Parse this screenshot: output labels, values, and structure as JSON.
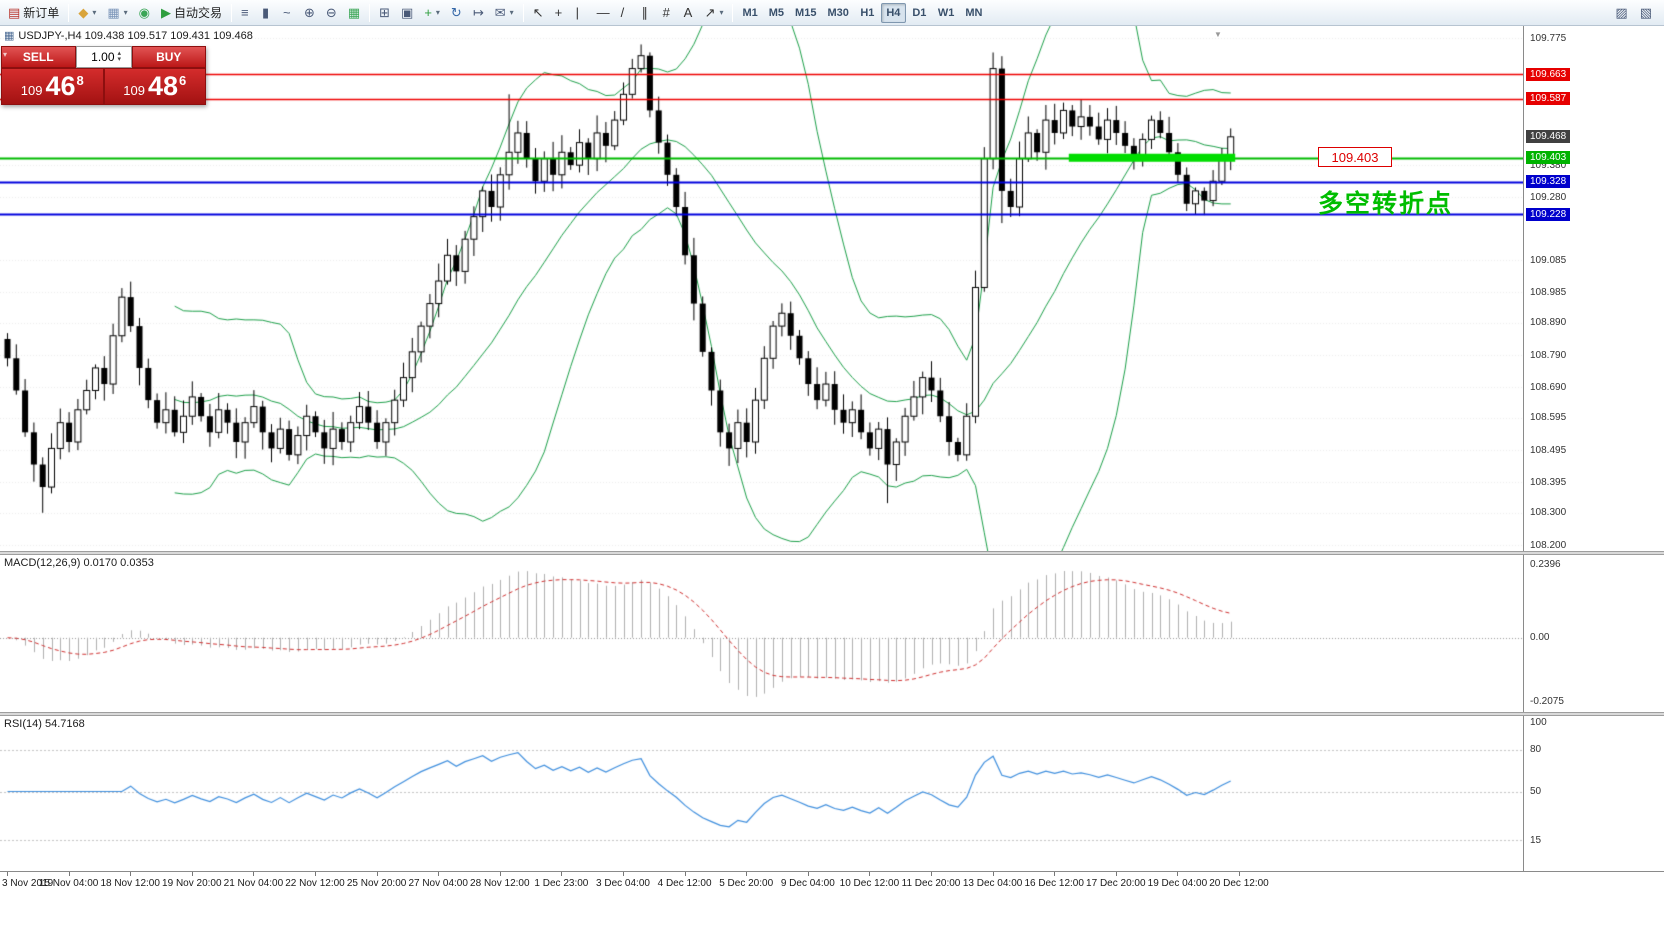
{
  "icons": {
    "caret": "▾",
    "volume_up": "▴",
    "volume_down": "▾",
    "collapse": "▾",
    "symbol_chart": "▦",
    "chart_shift_marker": "▼"
  },
  "toolbar": {
    "groups": [
      [
        {
          "name": "new-order-button",
          "glyph": "▤",
          "glyph_color": "#b8342c",
          "label": "新订单"
        }
      ],
      [
        {
          "name": "new-chart-icon",
          "glyph": "◆",
          "glyph_color": "#d9a43b",
          "caret": true
        },
        {
          "name": "profiles-icon",
          "glyph": "▦",
          "glyph_color": "#7a94b8",
          "caret": true
        },
        {
          "name": "data-window-icon",
          "glyph": "◉",
          "glyph_color": "#3aa655"
        },
        {
          "name": "auto-trading-button",
          "glyph": "▶",
          "glyph_color": "#2e9e3f",
          "label": "自动交易"
        }
      ],
      [
        {
          "name": "bar-chart-icon",
          "glyph": "≡",
          "glyph_color": "#4a5a78"
        },
        {
          "name": "candlestick-chart-icon",
          "glyph": "▮",
          "glyph_color": "#4a5a78"
        },
        {
          "name": "line-chart-icon",
          "glyph": "~",
          "glyph_color": "#4a5a78"
        },
        {
          "name": "zoom-in-icon",
          "glyph": "⊕",
          "glyph_color": "#4a5a78"
        },
        {
          "name": "zoom-out-icon",
          "glyph": "⊖",
          "glyph_color": "#4a5a78"
        },
        {
          "name": "grid-icon",
          "glyph": "▦",
          "glyph_color": "#3aa655"
        }
      ],
      [
        {
          "name": "tile-windows-icon",
          "glyph": "⊞",
          "glyph_color": "#4a5a78"
        },
        {
          "name": "arrange-windows-icon",
          "glyph": "▣",
          "glyph_color": "#4a5a78"
        },
        {
          "name": "add-chart-icon",
          "glyph": "+",
          "glyph_color": "#2e9e3f",
          "caret": true
        },
        {
          "name": "auto-scroll-icon",
          "glyph": "↻",
          "glyph_color": "#3668a8"
        },
        {
          "name": "chart-shift-icon",
          "glyph": "↦",
          "glyph_color": "#4a5a78"
        },
        {
          "name": "alerts-icon",
          "glyph": "✉",
          "glyph_color": "#4a5a78",
          "caret": true
        }
      ],
      [
        {
          "name": "cursor-icon",
          "glyph": "↖",
          "glyph_color": "#333333"
        },
        {
          "name": "crosshair-icon",
          "glyph": "+",
          "glyph_color": "#333333"
        },
        {
          "name": "vertical-line-icon",
          "glyph": "|",
          "glyph_color": "#333333"
        },
        {
          "name": "horizontal-line-icon",
          "glyph": "—",
          "glyph_color": "#333333"
        },
        {
          "name": "trendline-icon",
          "glyph": "/",
          "glyph_color": "#333333"
        },
        {
          "name": "channel-icon",
          "glyph": "∥",
          "glyph_color": "#333333"
        },
        {
          "name": "fibonacci-icon",
          "glyph": "#",
          "glyph_color": "#333333"
        },
        {
          "name": "text-icon",
          "glyph": "A",
          "glyph_color": "#333333"
        },
        {
          "name": "arrows-icon",
          "glyph": "↗",
          "glyph_color": "#333333",
          "caret": true
        }
      ]
    ],
    "timeframes": [
      "M1",
      "M5",
      "M15",
      "M30",
      "H1",
      "H4",
      "D1",
      "W1",
      "MN"
    ],
    "active_timeframe": "H4",
    "right_icons": [
      {
        "name": "chart-properties-icon",
        "glyph": "▨",
        "glyph_color": "#4a5a78"
      },
      {
        "name": "help-search-icon",
        "glyph": "▧",
        "glyph_color": "#4a5a78"
      }
    ]
  },
  "chart": {
    "symbol_info": "USDJPY-,H4  109.438 109.517 109.431 109.468",
    "trade_panel": {
      "sell_label": "SELL",
      "buy_label": "BUY",
      "volume": "1.00",
      "sell_prefix": "109",
      "sell_main": "46",
      "sell_sup": "8",
      "buy_prefix": "109",
      "buy_main": "48",
      "buy_sup": "6"
    },
    "axis_labels": [
      "109.775",
      "109.380",
      "109.280",
      "109.085",
      "108.985",
      "108.890",
      "108.790",
      "108.690",
      "108.595",
      "108.495",
      "108.395",
      "108.300",
      "108.200"
    ],
    "axis_tags": [
      {
        "text": "109.663",
        "bg": "#e60000"
      },
      {
        "text": "109.587",
        "bg": "#e60000"
      },
      {
        "text": "109.468",
        "bg": "#404040"
      },
      {
        "text": "109.403",
        "bg": "#00b300"
      },
      {
        "text": "109.328",
        "bg": "#0000cc"
      },
      {
        "text": "109.228",
        "bg": "#0000cc"
      }
    ],
    "annotation_price": "109.403",
    "annotation_text": "多空转折点"
  },
  "macd": {
    "label": "MACD(12,26,9) 0.0170 0.0353",
    "axis": [
      "0.2396",
      "0.00",
      "-0.2075"
    ]
  },
  "rsi": {
    "label": "RSI(14) 54.7168",
    "axis": [
      "100",
      "80",
      "50",
      "15"
    ],
    "levels": [
      80,
      50,
      15
    ]
  },
  "time_axis": [
    "3 Nov 2019",
    "15 Nov 04:00",
    "18 Nov 12:00",
    "19 Nov 20:00",
    "21 Nov 04:00",
    "22 Nov 12:00",
    "25 Nov 20:00",
    "27 Nov 04:00",
    "28 Nov 12:00",
    "1 Dec 23:00",
    "3 Dec 04:00",
    "4 Dec 12:00",
    "5 Dec 20:00",
    "9 Dec 04:00",
    "10 Dec 12:00",
    "11 Dec 20:00",
    "13 Dec 04:00",
    "16 Dec 12:00",
    "17 Dec 20:00",
    "19 Dec 04:00",
    "20 Dec 12:00"
  ],
  "chart_data": {
    "type": "candlestick",
    "symbol": "USDJPY",
    "timeframe": "H4",
    "ohlc_display": {
      "open": "109.438",
      "high": "109.517",
      "low": "109.431",
      "close": "109.468"
    },
    "current_price": 109.468,
    "price_axis": {
      "min": 108.2,
      "max": 109.775
    },
    "closes": [
      108.78,
      108.68,
      108.55,
      108.45,
      108.38,
      108.5,
      108.58,
      108.52,
      108.62,
      108.68,
      108.75,
      108.7,
      108.85,
      108.97,
      108.88,
      108.75,
      108.65,
      108.58,
      108.62,
      108.55,
      108.6,
      108.66,
      108.6,
      108.55,
      108.62,
      108.58,
      108.52,
      108.58,
      108.63,
      108.55,
      108.5,
      108.56,
      108.48,
      108.54,
      108.6,
      108.55,
      108.5,
      108.56,
      108.52,
      108.58,
      108.63,
      108.58,
      108.52,
      108.58,
      108.65,
      108.72,
      108.8,
      108.88,
      108.95,
      109.02,
      109.1,
      109.05,
      109.15,
      109.22,
      109.3,
      109.25,
      109.35,
      109.42,
      109.48,
      109.4,
      109.33,
      109.4,
      109.35,
      109.42,
      109.38,
      109.45,
      109.4,
      109.48,
      109.44,
      109.52,
      109.6,
      109.68,
      109.72,
      109.55,
      109.45,
      109.35,
      109.25,
      109.1,
      108.95,
      108.8,
      108.68,
      108.55,
      108.5,
      108.58,
      108.52,
      108.65,
      108.78,
      108.88,
      108.92,
      108.85,
      108.78,
      108.7,
      108.65,
      108.7,
      108.62,
      108.58,
      108.62,
      108.55,
      108.5,
      108.56,
      108.45,
      108.52,
      108.6,
      108.66,
      108.72,
      108.68,
      108.6,
      108.52,
      108.48,
      108.6,
      109.0,
      109.4,
      109.68,
      109.3,
      109.25,
      109.4,
      109.48,
      109.42,
      109.52,
      109.48,
      109.55,
      109.5,
      109.53,
      109.5,
      109.46,
      109.52,
      109.48,
      109.44,
      109.4,
      109.46,
      109.52,
      109.48,
      109.42,
      109.35,
      109.26,
      109.3,
      109.27,
      109.33,
      109.4,
      109.468
    ],
    "wick_overrides": {
      "lows": {
        "4": 108.3,
        "100": 108.33,
        "113": 109.2
      },
      "highs": {
        "57": 109.6,
        "72": 109.755,
        "112": 109.73
      }
    },
    "levels": [
      {
        "price": 109.663,
        "color": "#ee0000",
        "width": 1.5
      },
      {
        "price": 109.587,
        "color": "#ee0000",
        "width": 1.5
      },
      {
        "price": 109.403,
        "color": "#00bb00",
        "width": 2
      },
      {
        "price": 109.328,
        "color": "#0000dd",
        "width": 2
      },
      {
        "price": 109.228,
        "color": "#0000dd",
        "width": 2
      }
    ],
    "highlight_bar": {
      "price": 109.403,
      "from_index": 121,
      "to_index": 139,
      "color": "#00dd00",
      "thickness": 8
    },
    "indicators": {
      "bollinger": {
        "period": 20,
        "deviation": 2,
        "color": "#1ca049"
      },
      "macd": {
        "fast": 12,
        "slow": 26,
        "signal": 9,
        "histogram_color": "#b0b0b0",
        "signal_color": "#d03030"
      },
      "rsi": {
        "period": 14,
        "line_color": "#3f8fde"
      }
    }
  }
}
